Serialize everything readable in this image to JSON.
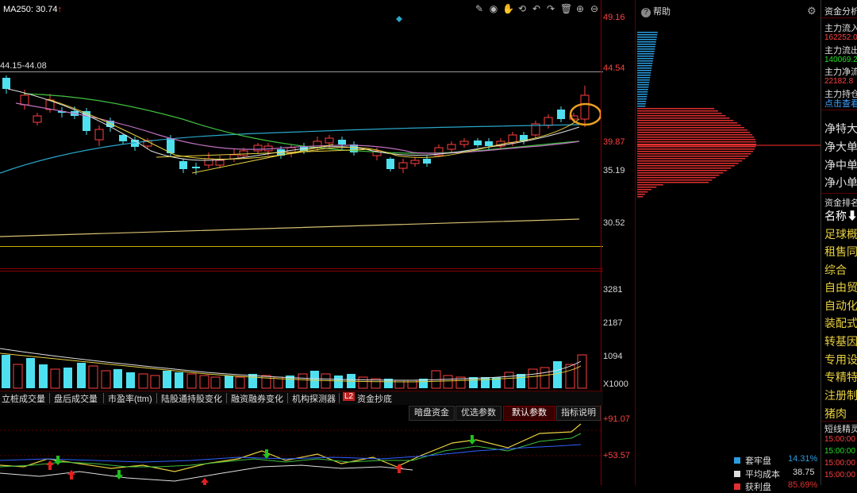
{
  "main_chart": {
    "ma_label": "MA250:",
    "ma_value": "30.74",
    "ma_arrow": "↑",
    "price_range": "44.15-44.08",
    "y_ticks": [
      "49.16",
      "44.54",
      "39.87",
      "35.19",
      "30.52"
    ]
  },
  "volume_chart": {
    "y_ticks": [
      "3281",
      "2187",
      "1094"
    ],
    "unit": "X1000"
  },
  "indicator_chart": {
    "y_ticks": [
      "+91.07",
      "+53.57"
    ]
  },
  "toolbar": {
    "icons": [
      "pen-icon",
      "eye-icon",
      "hand-icon",
      "history-icon",
      "undo-icon",
      "delete-icon",
      "zoom-in-icon",
      "zoom-out-icon"
    ]
  },
  "tabs": [
    "立桩成交量",
    "盘后成交量",
    "市盈率(ttm)",
    "陆股通持股变化",
    "融资融券变化",
    "机构探测器",
    "资金抄底"
  ],
  "l2_badge": "L2",
  "subtabs": [
    "暗盘资金",
    "优选参数",
    "默认参数",
    "指标说明"
  ],
  "active_subtab": "默认参数",
  "help": "帮助",
  "fund_panel": {
    "title": "资金分析",
    "rows": [
      {
        "text": "主力流入",
        "color": "#e0e0e0"
      },
      {
        "text": "162252.0",
        "color": "#ff4040"
      },
      {
        "text": "主力流出",
        "color": "#e0e0e0"
      },
      {
        "text": "140069.2",
        "color": "#20e020"
      },
      {
        "text": "主力净流",
        "color": "#e0e0e0"
      },
      {
        "text": "22182.8",
        "color": "#ff4040"
      },
      {
        "text": "主力持仓",
        "color": "#e0e0e0"
      },
      {
        "text": "点击查看",
        "color": "#3fa0ff"
      }
    ],
    "net_rows": [
      "净特大单",
      "净大单",
      "净中单",
      "净小单"
    ],
    "rank_title": "资金排名",
    "rank_header": "名称⬇",
    "rank_items": [
      "足球概念",
      "租售同权",
      "综合",
      "自由贸易",
      "自动化设备",
      "装配式建筑",
      "转基因",
      "专用设备",
      "专精特新",
      "注册制",
      "猪肉"
    ],
    "short_title": "短线精灵",
    "short_times": [
      "15:00:00",
      "15:00:00",
      "15:00:00",
      "15:00:00"
    ]
  },
  "chip_legend": [
    {
      "label": "套牢盘",
      "value": "14.31%",
      "color": "#2a9de0",
      "value_color": "#2a9de0"
    },
    {
      "label": "平均成本",
      "value": "38.75",
      "color": "#dddddd",
      "value_color": "#dddddd"
    },
    {
      "label": "获利盘",
      "value": "85.69%",
      "color": "#e03030",
      "value_color": "#e03030"
    }
  ]
}
